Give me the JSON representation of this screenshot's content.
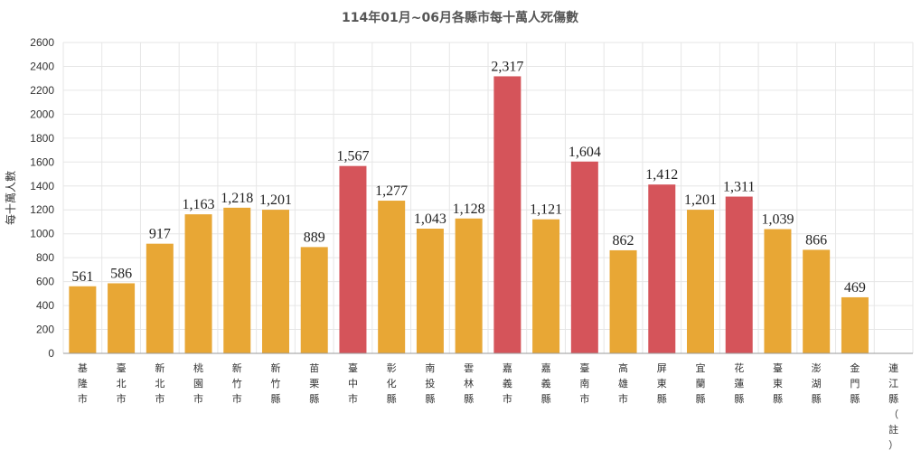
{
  "chart_data": {
    "type": "bar",
    "title": "114年01月~06月各縣市每十萬人死傷數",
    "ylabel": "每十萬人數",
    "xlabel": "",
    "ylim": [
      0,
      2600
    ],
    "yticks": [
      0,
      200,
      400,
      600,
      800,
      1000,
      1200,
      1400,
      1600,
      1800,
      2000,
      2200,
      2400,
      2600
    ],
    "grid": true,
    "legend": "none",
    "colors": {
      "normal": "#e8a735",
      "highlight": "#d5545a"
    },
    "categories": [
      "基隆市",
      "臺北市",
      "新北市",
      "桃園市",
      "新竹市",
      "新竹縣",
      "苗栗縣",
      "臺中市",
      "彰化縣",
      "南投縣",
      "雲林縣",
      "嘉義市",
      "嘉義縣",
      "臺南市",
      "高雄市",
      "屏東縣",
      "宜蘭縣",
      "花蓮縣",
      "臺東縣",
      "澎湖縣",
      "金門縣",
      "連江縣（註）"
    ],
    "values": [
      561,
      586,
      917,
      1163,
      1218,
      1201,
      889,
      1567,
      1277,
      1043,
      1128,
      2317,
      1121,
      1604,
      862,
      1412,
      1201,
      1311,
      1039,
      866,
      469,
      null
    ],
    "value_labels": [
      "561",
      "586",
      "917",
      "1,163",
      "1,218",
      "1,201",
      "889",
      "1,567",
      "1,277",
      "1,043",
      "1,128",
      "2,317",
      "1,121",
      "1,604",
      "862",
      "1,412",
      "1,201",
      "1,311",
      "1,039",
      "866",
      "469",
      ""
    ],
    "highlighted": [
      false,
      false,
      false,
      false,
      false,
      false,
      false,
      true,
      false,
      false,
      false,
      true,
      false,
      true,
      false,
      true,
      false,
      true,
      false,
      false,
      false,
      false
    ]
  }
}
